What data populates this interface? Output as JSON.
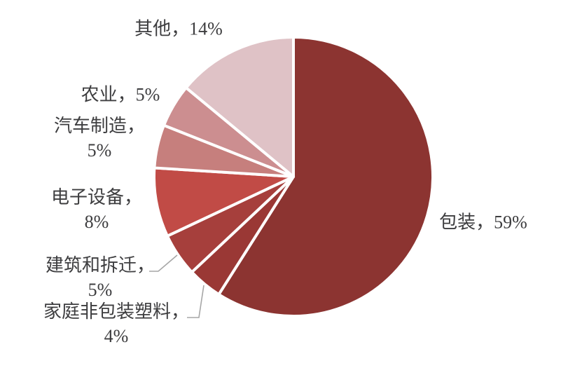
{
  "chart_data": {
    "type": "pie",
    "title": "",
    "unit": "%",
    "start_angle_deg": 0,
    "direction": "clockwise",
    "legend_position": "outside-labels",
    "series": [
      {
        "name": "包装",
        "value": 59,
        "color": "#8C3431"
      },
      {
        "name": "家庭非包装塑料",
        "value": 4,
        "color": "#9A3835"
      },
      {
        "name": "建筑和拆迁",
        "value": 5,
        "color": "#A63F3C"
      },
      {
        "name": "电子设备",
        "value": 8,
        "color": "#C14B46"
      },
      {
        "name": "汽车制造",
        "value": 5,
        "color": "#C67F7D"
      },
      {
        "name": "农业",
        "value": 5,
        "color": "#CC8E90"
      },
      {
        "name": "其他",
        "value": 14,
        "color": "#DFC2C6"
      }
    ]
  },
  "labels": {
    "other": {
      "line1": "其他，14%"
    },
    "agriculture": {
      "line1": "农业，5%"
    },
    "auto": {
      "line1": "汽车制造，",
      "line2": "5%"
    },
    "electronics": {
      "line1": "电子设备，",
      "line2": "8%"
    },
    "construction": {
      "line1": "建筑和拆迁，",
      "line2": "5%"
    },
    "household": {
      "line1": "家庭非包装塑料，",
      "line2": "4%"
    },
    "packaging": {
      "line1": "包装，59%"
    }
  },
  "colors": {
    "background": "#FFFFFF",
    "slice_border": "#FFFFFF",
    "leader_line": "#A6A6A6",
    "label_text": "#3D3D3F"
  }
}
